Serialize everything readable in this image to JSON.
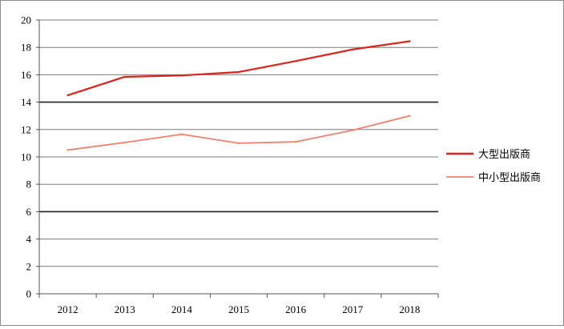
{
  "chart_data": {
    "type": "line",
    "title": "",
    "xlabel": "",
    "ylabel": "",
    "categories": [
      "2012",
      "2013",
      "2014",
      "2015",
      "2016",
      "2017",
      "2018"
    ],
    "ylim": [
      0,
      20
    ],
    "yticks": [
      0,
      2,
      4,
      6,
      8,
      10,
      12,
      14,
      16,
      18,
      20
    ],
    "grid": true,
    "legend_position": "right",
    "series": [
      {
        "name": "大型出版商",
        "color": "#d7261e",
        "values": [
          14.5,
          15.85,
          15.95,
          16.2,
          17.0,
          17.85,
          18.45
        ]
      },
      {
        "name": "中小型出版商",
        "color": "#f08070",
        "values": [
          10.5,
          11.05,
          11.65,
          11.0,
          11.1,
          11.95,
          13.0
        ]
      }
    ]
  }
}
